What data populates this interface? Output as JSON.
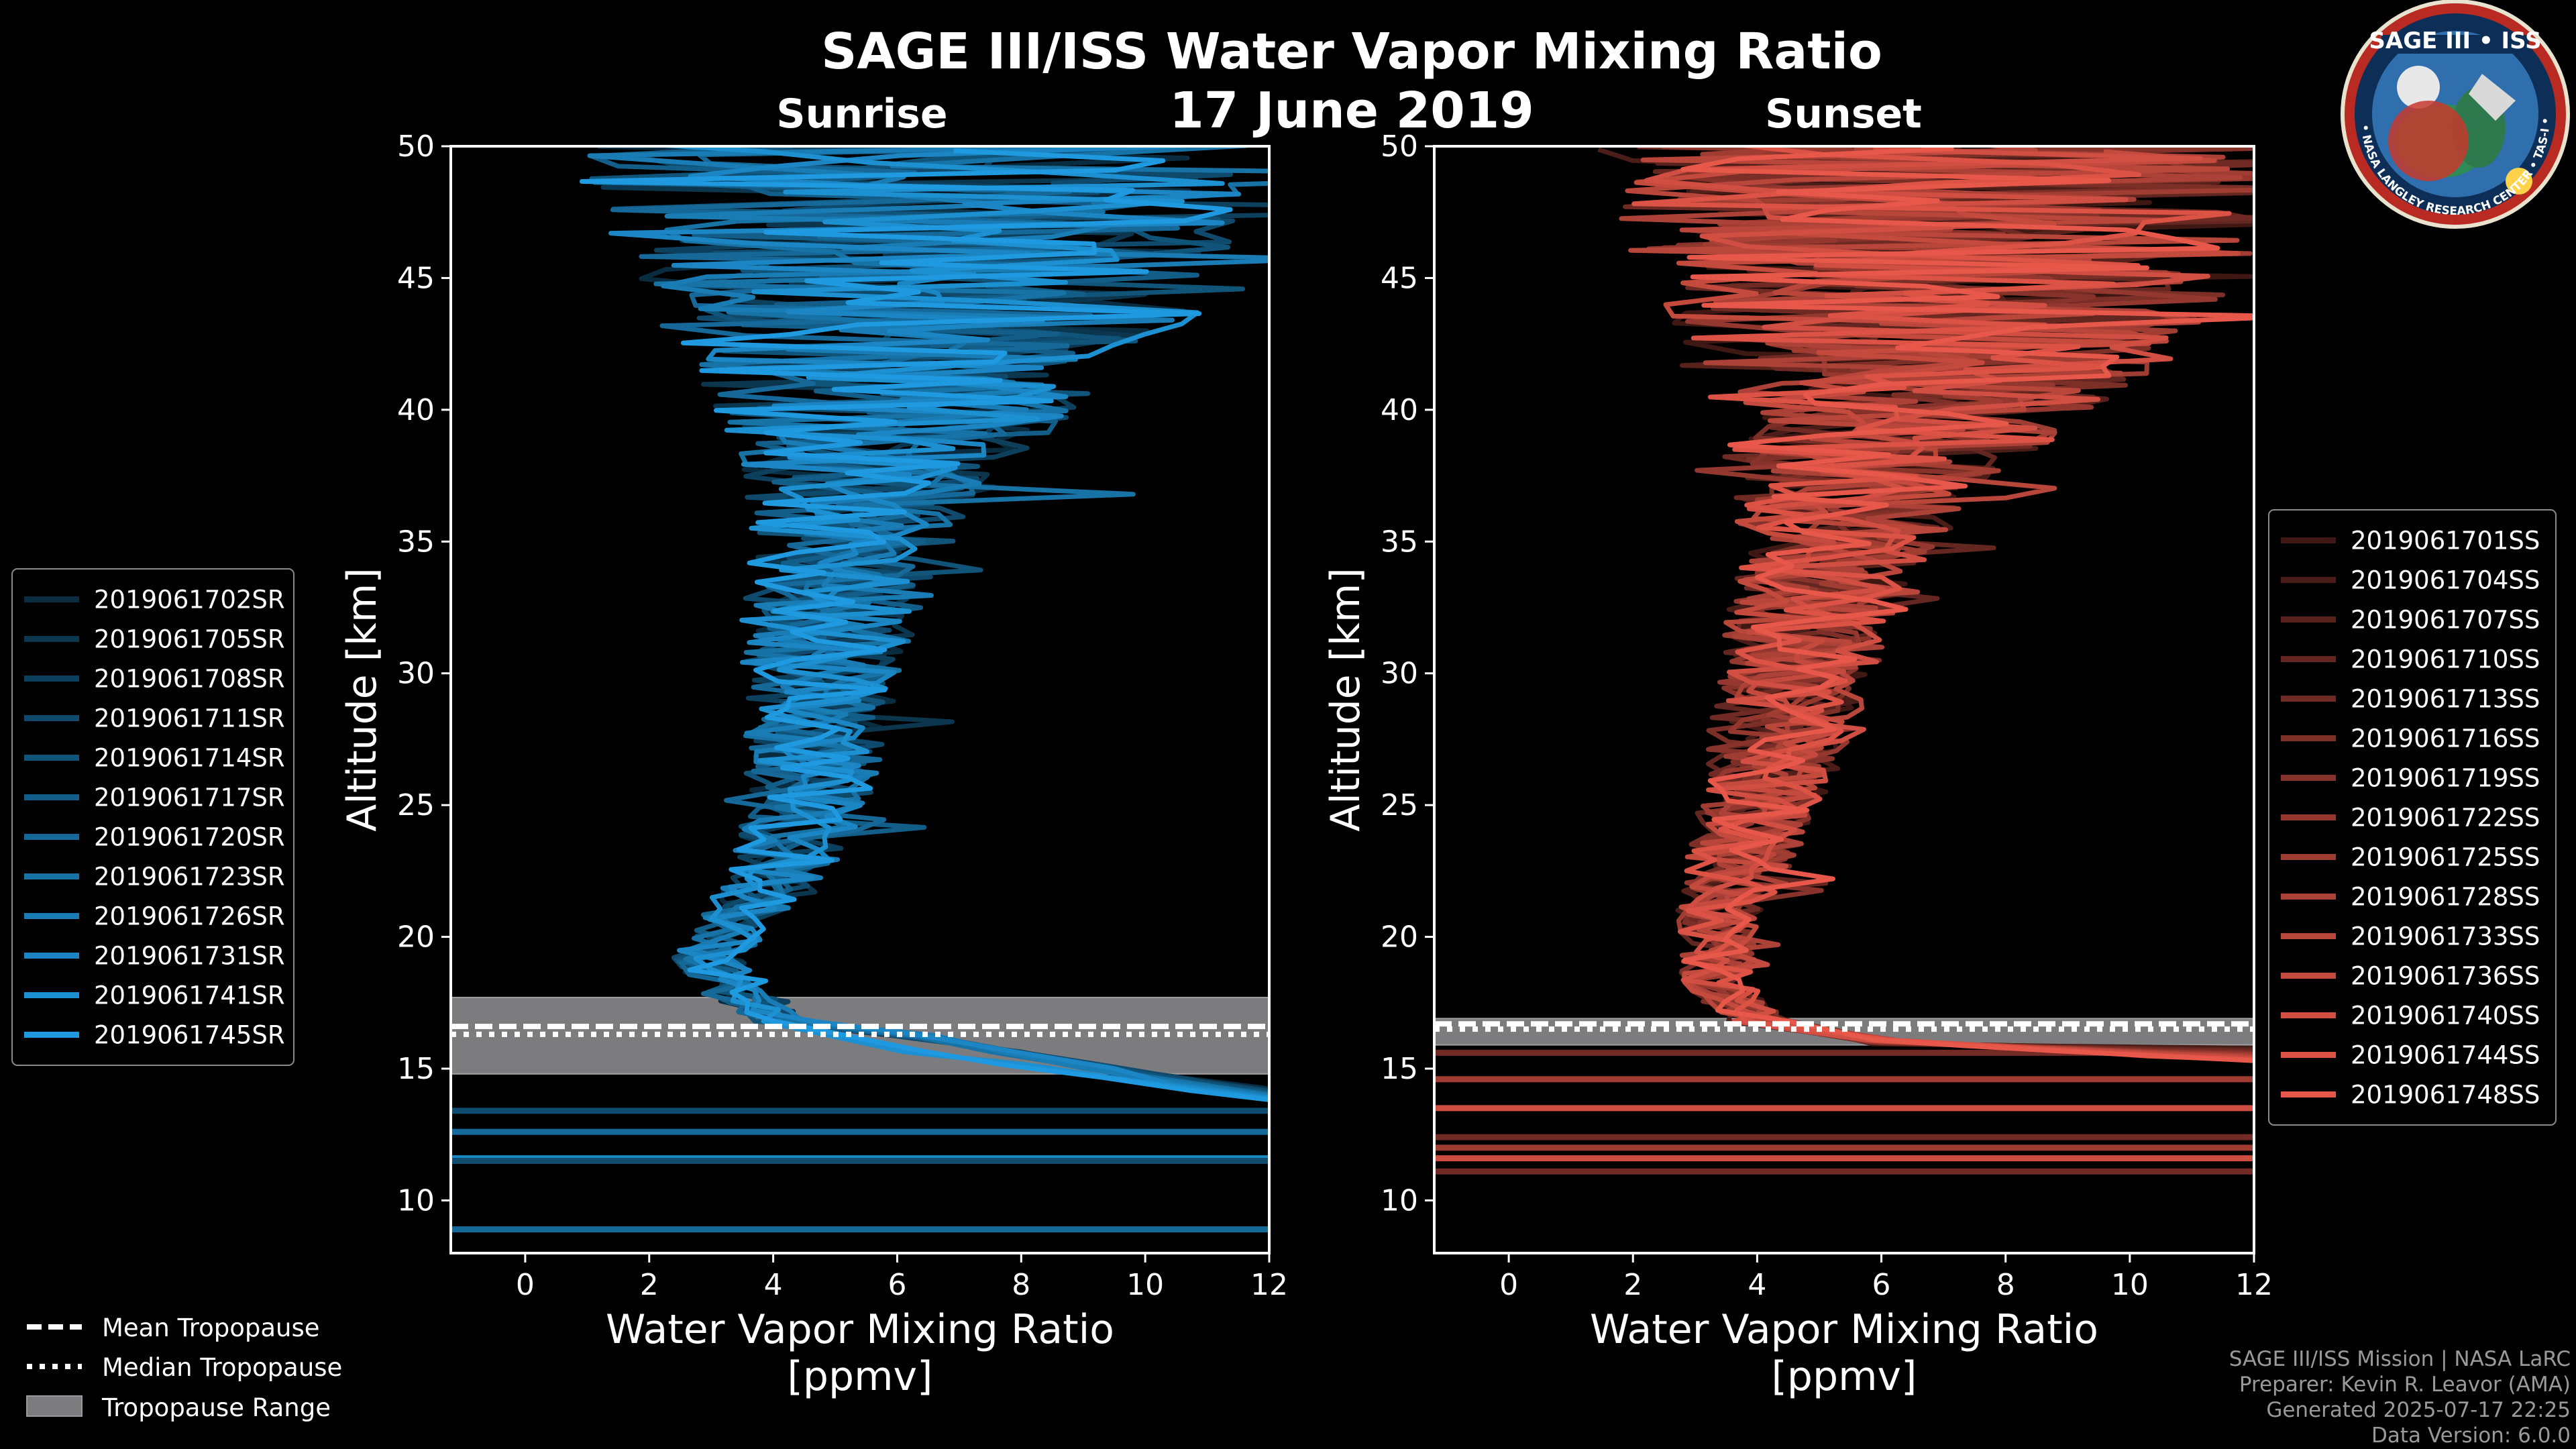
{
  "title": "SAGE III/ISS Water Vapor Mixing Ratio",
  "date": "17 June 2019",
  "footer": {
    "line1": "SAGE III/ISS Mission | NASA LaRC",
    "line2": "Preparer: Kevin R. Leavor (AMA)",
    "line3": "Generated 2025-07-17 22:25",
    "line4": "Data Version: 6.0.0"
  },
  "logo": {
    "title": "SAGE III • ISS",
    "ring_text": "BALL • NASA LANGLEY RESEARCH CENTER • TAS-I • ESA"
  },
  "tropopause_legend": {
    "mean": "Mean Tropopause",
    "median": "Median Tropopause",
    "range": "Tropopause Range"
  },
  "chart_data": [
    {
      "type": "line",
      "panel": "Sunrise",
      "title": "Sunrise",
      "xlabel": "Water Vapor Mixing Ratio",
      "xunit": "[ppmv]",
      "ylabel": "Altitude [km]",
      "xlim": [
        -1.2,
        12
      ],
      "ylim": [
        8,
        50
      ],
      "xticks": [
        0,
        2,
        4,
        6,
        8,
        10,
        12
      ],
      "yticks": [
        10,
        15,
        20,
        25,
        30,
        35,
        40,
        45,
        50
      ],
      "color": "#1f9ae0",
      "tropopause": {
        "mean": 16.6,
        "median": 16.3,
        "range": [
          14.8,
          17.7
        ]
      },
      "series": [
        {
          "name": "2019061702SR"
        },
        {
          "name": "2019061705SR"
        },
        {
          "name": "2019061708SR"
        },
        {
          "name": "2019061711SR"
        },
        {
          "name": "2019061714SR"
        },
        {
          "name": "2019061717SR"
        },
        {
          "name": "2019061720SR"
        },
        {
          "name": "2019061723SR"
        },
        {
          "name": "2019061726SR"
        },
        {
          "name": "2019061731SR"
        },
        {
          "name": "2019061741SR"
        },
        {
          "name": "2019061745SR"
        }
      ],
      "profile_center": [
        [
          16.8,
          4.2
        ],
        [
          18,
          3.3
        ],
        [
          19,
          3.0
        ],
        [
          20,
          3.2
        ],
        [
          22,
          4.0
        ],
        [
          24,
          4.4
        ],
        [
          26,
          4.6
        ],
        [
          28,
          4.7
        ],
        [
          30,
          4.8
        ],
        [
          32,
          4.9
        ],
        [
          34,
          5.1
        ],
        [
          36,
          5.4
        ],
        [
          38,
          5.7
        ],
        [
          40,
          6.0
        ],
        [
          42,
          6.3
        ],
        [
          44,
          6.6
        ],
        [
          46,
          6.5
        ],
        [
          48,
          6.3
        ],
        [
          50,
          6.2
        ]
      ],
      "profile_spread": [
        [
          17,
          0.5
        ],
        [
          20,
          0.7
        ],
        [
          25,
          1.0
        ],
        [
          30,
          1.3
        ],
        [
          35,
          1.6
        ],
        [
          38,
          2.2
        ],
        [
          41,
          3.3
        ],
        [
          44,
          4.5
        ],
        [
          47,
          5.2
        ],
        [
          50,
          5.5
        ]
      ],
      "tails": {
        "start": 5.0,
        "end": 12,
        "alt_top": 16.5,
        "alt_bottom": 13.6
      },
      "flat_lines": [
        13.4,
        12.6,
        11.6,
        11.5,
        8.9
      ]
    },
    {
      "type": "line",
      "panel": "Sunset",
      "title": "Sunset",
      "xlabel": "Water Vapor Mixing Ratio",
      "xunit": "[ppmv]",
      "ylabel": "Altitude [km]",
      "xlim": [
        -1.2,
        12
      ],
      "ylim": [
        8,
        50
      ],
      "xticks": [
        0,
        2,
        4,
        6,
        8,
        10,
        12
      ],
      "yticks": [
        10,
        15,
        20,
        25,
        30,
        35,
        40,
        45,
        50
      ],
      "color": "#e8584a",
      "tropopause": {
        "mean": 16.7,
        "median": 16.5,
        "range": [
          15.9,
          16.9
        ]
      },
      "series": [
        {
          "name": "2019061701SS"
        },
        {
          "name": "2019061704SS"
        },
        {
          "name": "2019061707SS"
        },
        {
          "name": "2019061710SS"
        },
        {
          "name": "2019061713SS"
        },
        {
          "name": "2019061716SS"
        },
        {
          "name": "2019061719SS"
        },
        {
          "name": "2019061722SS"
        },
        {
          "name": "2019061725SS"
        },
        {
          "name": "2019061728SS"
        },
        {
          "name": "2019061733SS"
        },
        {
          "name": "2019061736SS"
        },
        {
          "name": "2019061740SS"
        },
        {
          "name": "2019061744SS"
        },
        {
          "name": "2019061748SS"
        }
      ],
      "profile_center": [
        [
          16.8,
          4.0
        ],
        [
          18,
          3.4
        ],
        [
          20,
          3.3
        ],
        [
          22,
          3.6
        ],
        [
          24,
          3.9
        ],
        [
          26,
          4.2
        ],
        [
          28,
          4.4
        ],
        [
          30,
          4.6
        ],
        [
          32,
          4.9
        ],
        [
          34,
          5.2
        ],
        [
          36,
          5.5
        ],
        [
          38,
          5.9
        ],
        [
          40,
          6.3
        ],
        [
          42,
          6.7
        ],
        [
          44,
          6.9
        ],
        [
          46,
          7.0
        ],
        [
          48,
          7.0
        ],
        [
          50,
          7.0
        ]
      ],
      "profile_spread": [
        [
          17,
          0.5
        ],
        [
          20,
          0.7
        ],
        [
          25,
          1.0
        ],
        [
          30,
          1.3
        ],
        [
          35,
          1.6
        ],
        [
          38,
          2.4
        ],
        [
          41,
          3.6
        ],
        [
          44,
          4.8
        ],
        [
          47,
          5.3
        ],
        [
          50,
          5.6
        ]
      ],
      "tails": {
        "start": 4.5,
        "end": 12,
        "alt_top": 16.3,
        "alt_bottom": 13.8
      },
      "flat_lines": [
        15.6,
        14.6,
        13.5,
        12.4,
        12.0,
        11.6,
        11.1
      ]
    }
  ]
}
